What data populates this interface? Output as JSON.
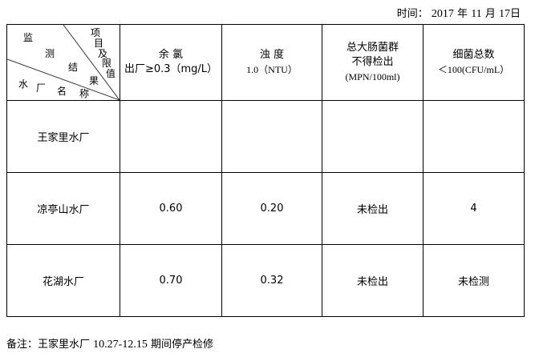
{
  "date": {
    "label": "时间：",
    "year": "2017",
    "year_unit": "年",
    "month": "11",
    "month_unit": "月",
    "day": "17",
    "day_unit": "日"
  },
  "corner": {
    "top_label": [
      "监",
      "测",
      "结",
      "果"
    ],
    "right_label": [
      "项",
      "目",
      "及",
      "限",
      "值"
    ],
    "bottom_label": [
      "水",
      "厂",
      "名",
      "称"
    ]
  },
  "columns": [
    {
      "line1": "余 氯",
      "line2": "出厂≥0.3（mg/L）"
    },
    {
      "line1": "浊 度",
      "line2": "1.0（NTU）"
    },
    {
      "line1": "总大肠菌群",
      "line2": "不得检出",
      "line3": "(MPN/100ml)"
    },
    {
      "line1": "细菌总数",
      "line2": "＜100(CFU/mL）"
    }
  ],
  "rows": [
    {
      "name": "王家里水厂",
      "values": [
        "",
        "",
        "",
        ""
      ]
    },
    {
      "name": "凉亭山水厂",
      "values": [
        "0.60",
        "0.20",
        "未检出",
        "4"
      ]
    },
    {
      "name": "花湖水厂",
      "values": [
        "0.70",
        "0.32",
        "未检出",
        "未检测"
      ]
    }
  ],
  "note": {
    "label": "备注：",
    "text1": "王家里水厂",
    "range": "10.27-12.15",
    "text2": "期间停产检修"
  }
}
